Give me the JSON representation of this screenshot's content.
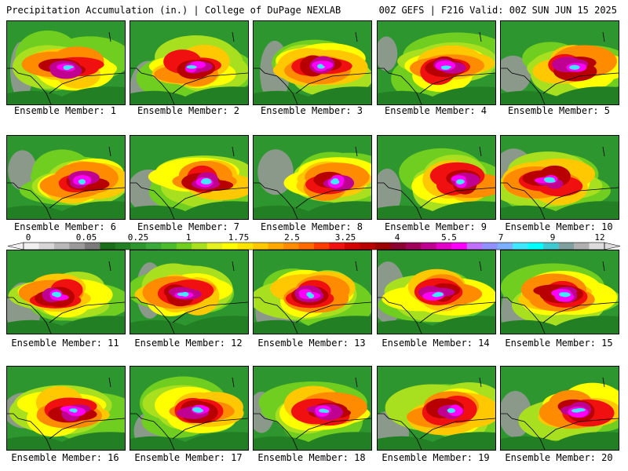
{
  "header": {
    "title_left": "Precipitation Accumulation (in.) | College of DuPage NEXLAB",
    "title_right": "00Z GEFS | F216 Valid: 00Z SUN JUN 15 2025"
  },
  "member_label_prefix": "Ensemble Member: ",
  "members": [
    1,
    2,
    3,
    4,
    5,
    6,
    7,
    8,
    9,
    10,
    11,
    12,
    13,
    14,
    15,
    16,
    17,
    18,
    19,
    20
  ],
  "colorbar": {
    "tick_labels": [
      "0",
      "0.05",
      "0.25",
      "1",
      "1.75",
      "2.5",
      "3.25",
      "4",
      "5.5",
      "7",
      "9",
      "12"
    ],
    "colors": [
      "#f0f0f0",
      "#d6d6d6",
      "#b8b8b8",
      "#9a9a9a",
      "#7a7a7a",
      "#1a6e1a",
      "#237f23",
      "#2e962e",
      "#3aa93a",
      "#4cbc2c",
      "#6fce20",
      "#a8e020",
      "#e4f020",
      "#ffff00",
      "#ffe400",
      "#ffc800",
      "#ffa800",
      "#ff8c00",
      "#ff6a00",
      "#ff3c00",
      "#f01010",
      "#d40000",
      "#b80000",
      "#9a0000",
      "#8a0030",
      "#a0005a",
      "#c00090",
      "#e000c8",
      "#ff00ff",
      "#c070ff",
      "#9090ff",
      "#7ab0ff",
      "#40e8ff",
      "#00ffff",
      "#40c8d0",
      "#80a0a0",
      "#b0b0b0",
      "#dcdcdc"
    ]
  }
}
